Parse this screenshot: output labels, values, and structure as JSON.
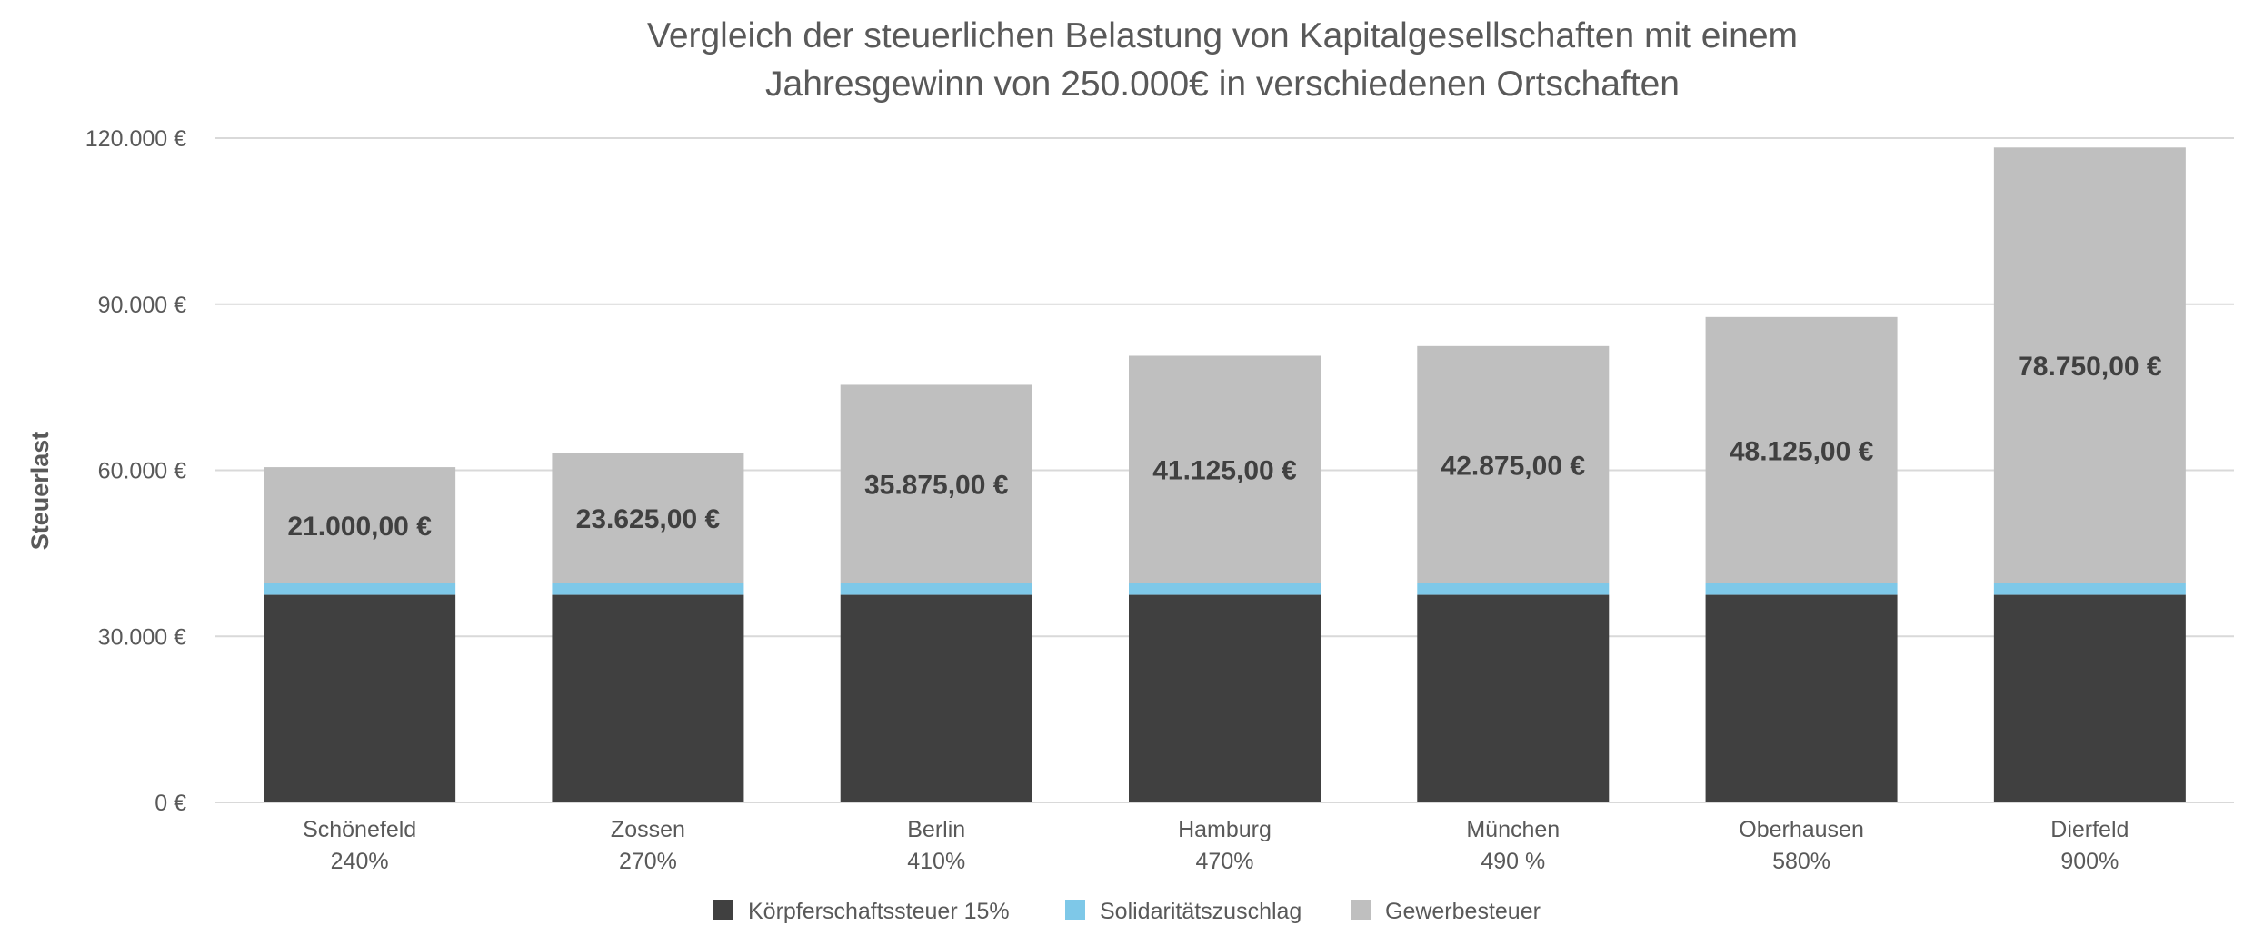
{
  "chart_data": {
    "type": "stacked-bar",
    "title_lines": [
      "Vergleich der steuerlichen Belastung von Kapitalgesellschaften mit einem",
      "Jahresgewinn von 250.000€ in verschiedenen Ortschaften"
    ],
    "xlabel": "",
    "ylabel": "Steuerlast",
    "ylim": [
      0,
      120000
    ],
    "y_ticks": [
      {
        "value": 0,
        "label": "0 €"
      },
      {
        "value": 30000,
        "label": "30.000 €"
      },
      {
        "value": 60000,
        "label": "60.000 €"
      },
      {
        "value": 90000,
        "label": "90.000 €"
      },
      {
        "value": 120000,
        "label": "120.000 €"
      }
    ],
    "categories": [
      {
        "name": "Schönefeld",
        "rate": "240%"
      },
      {
        "name": "Zossen",
        "rate": "270%"
      },
      {
        "name": "Berlin",
        "rate": "410%"
      },
      {
        "name": "Hamburg",
        "rate": "470%"
      },
      {
        "name": "München",
        "rate": "490 %"
      },
      {
        "name": "Oberhausen",
        "rate": "580%"
      },
      {
        "name": "Dierfeld",
        "rate": "900%"
      }
    ],
    "series": [
      {
        "name": "Körpferschaftssteuer 15%",
        "color": "#404040",
        "values": [
          37500,
          37500,
          37500,
          37500,
          37500,
          37500,
          37500
        ]
      },
      {
        "name": "Solidaritätszuschlag",
        "color": "#7ec8e8",
        "values": [
          2062.5,
          2062.5,
          2062.5,
          2062.5,
          2062.5,
          2062.5,
          2062.5
        ]
      },
      {
        "name": "Gewerbesteuer",
        "color": "#bfbfbf",
        "values": [
          21000,
          23625,
          35875,
          41125,
          42875,
          48125,
          78750
        ],
        "labels": [
          "21.000,00 €",
          "23.625,00 €",
          "35.875,00 €",
          "41.125,00 €",
          "42.875,00 €",
          "48.125,00 €",
          "78.750,00 €"
        ]
      }
    ],
    "grid": true,
    "legend_position": "bottom-center"
  }
}
